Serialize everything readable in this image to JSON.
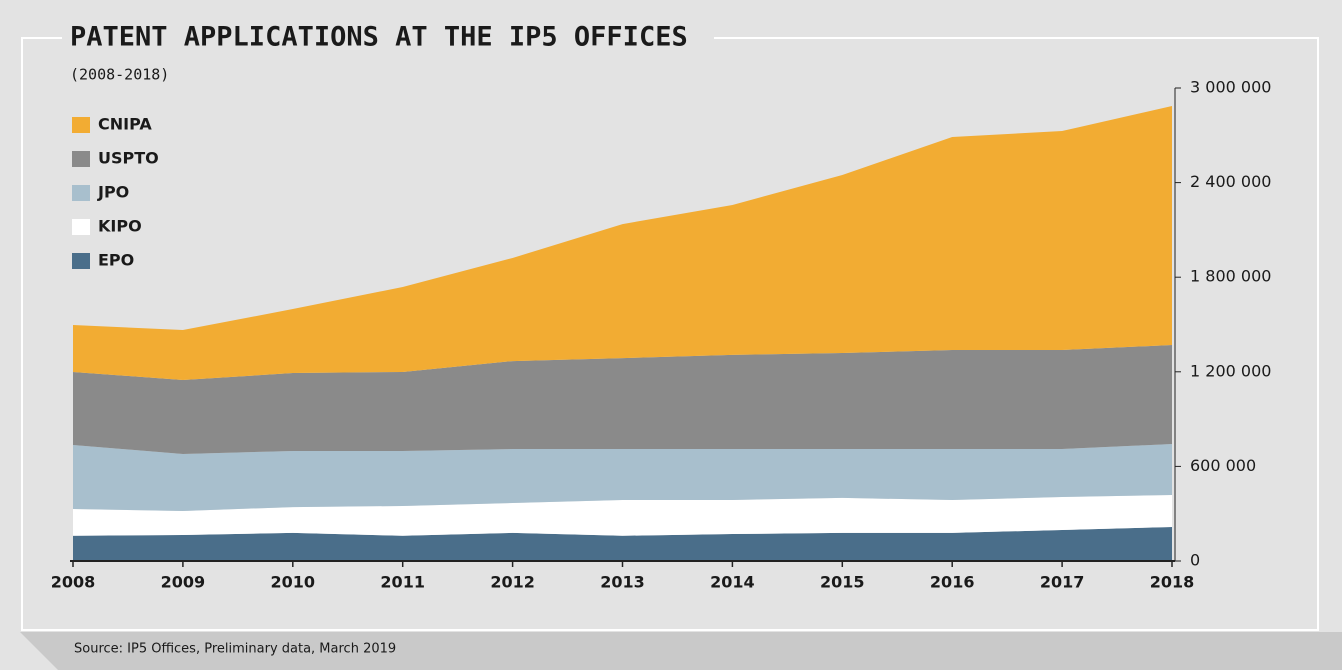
{
  "chart_data": {
    "type": "stacked_area",
    "title": "PATENT APPLICATIONS AT THE IP5 OFFICES",
    "subtitle": "(2008-2018)",
    "source": "Source: IP5 Offices, Preliminary data, March 2019",
    "x": [
      2008,
      2009,
      2010,
      2011,
      2012,
      2013,
      2014,
      2015,
      2016,
      2017,
      2018
    ],
    "xlim": [
      2008,
      2018
    ],
    "xticks": [
      2008,
      2009,
      2010,
      2011,
      2012,
      2013,
      2014,
      2015,
      2016,
      2017,
      2018
    ],
    "ylim": [
      0,
      3000000
    ],
    "yticks": [
      0,
      {
        "value": 600000,
        "label": "600 000"
      },
      {
        "value": 1200000,
        "label": "1 200 000"
      },
      {
        "value": 1800000,
        "label": "1 800 000"
      },
      {
        "value": 2400000,
        "label": "2 400 000"
      },
      {
        "value": 3000000,
        "label": "3 000 000"
      }
    ],
    "legend": "top-left",
    "series": [
      {
        "name": "EPO",
        "color": "#4a6e8a",
        "values": [
          160000,
          165000,
          178000,
          160000,
          178000,
          160000,
          171000,
          178000,
          178000,
          197000,
          216000
        ]
      },
      {
        "name": "KIPO",
        "color": "#ffffff",
        "values": [
          170000,
          152000,
          164000,
          189000,
          190000,
          227000,
          216000,
          222000,
          209000,
          209000,
          203000
        ]
      },
      {
        "name": "JPO",
        "color": "#a8bfcd",
        "values": [
          406000,
          362000,
          356000,
          349000,
          342000,
          323000,
          323000,
          310000,
          323000,
          304000,
          323000
        ]
      },
      {
        "name": "USPTO",
        "color": "#8a8a8a",
        "values": [
          463000,
          469000,
          494000,
          501000,
          558000,
          577000,
          597000,
          609000,
          628000,
          628000,
          628000
        ]
      },
      {
        "name": "CNIPA",
        "color": "#f2ac33",
        "values": [
          298000,
          317000,
          406000,
          539000,
          654000,
          850000,
          951000,
          1129000,
          1351000,
          1389000,
          1516000
        ]
      }
    ]
  }
}
